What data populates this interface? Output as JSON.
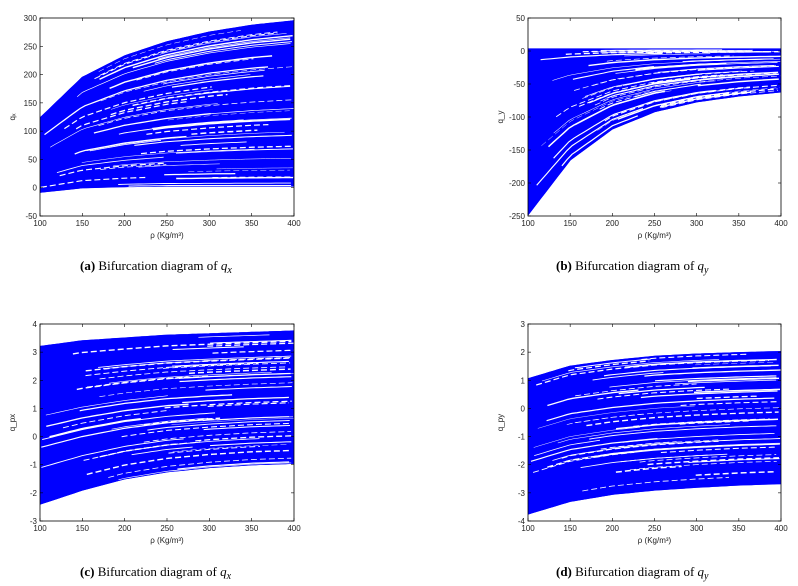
{
  "style": {
    "series_color": "#0000ff",
    "axis_color": "#000000"
  },
  "chart_data": [
    {
      "type": "line",
      "panel": "a",
      "caption": {
        "label": "(a)",
        "text": "Bifurcation diagram of",
        "symbol": "q",
        "subscript": "x"
      },
      "xlabel": "ρ (Kg/m³)",
      "ylabel": "qₓ",
      "xlim": [
        100,
        400
      ],
      "ylim": [
        -50,
        300
      ],
      "xticks": [
        100,
        150,
        200,
        250,
        300,
        350,
        400
      ],
      "yticks": [
        -50,
        0,
        50,
        100,
        150,
        200,
        250,
        300
      ],
      "grid": false,
      "series": [
        {
          "name": "",
          "x": [
            100,
            150,
            200,
            250,
            300,
            350,
            400
          ],
          "y": [
            123,
            195,
            233,
            258,
            275,
            287,
            295
          ]
        },
        {
          "name": "",
          "x": [
            100,
            150,
            200,
            250,
            300,
            350,
            400
          ],
          "y": [
            -8,
            0,
            2,
            3,
            3,
            3,
            3
          ]
        }
      ]
    },
    {
      "type": "line",
      "panel": "b",
      "caption": {
        "label": "(b)",
        "text": "Bifurcation diagram of",
        "symbol": "q",
        "subscript": "y"
      },
      "xlabel": "ρ (Kg/m³)",
      "ylabel": "q_y",
      "xlim": [
        100,
        400
      ],
      "ylim": [
        -250,
        50
      ],
      "xticks": [
        100,
        150,
        200,
        250,
        300,
        350,
        400
      ],
      "yticks": [
        -250,
        -200,
        -150,
        -100,
        -50,
        0,
        50
      ],
      "grid": false,
      "series": [
        {
          "name": "",
          "x": [
            100,
            150,
            200,
            250,
            300,
            350,
            400
          ],
          "y": [
            3,
            3,
            3,
            3,
            3,
            3,
            3
          ]
        },
        {
          "name": "",
          "x": [
            100,
            150,
            200,
            250,
            300,
            350,
            400
          ],
          "y": [
            -248,
            -165,
            -118,
            -92,
            -77,
            -68,
            -62
          ]
        }
      ]
    },
    {
      "type": "line",
      "panel": "c",
      "caption": {
        "label": "(c)",
        "text": "Bifurcation diagram of",
        "symbol": "q",
        "subscript": "x"
      },
      "xlabel": "ρ (Kg/m³)",
      "ylabel": "q_px",
      "xlim": [
        100,
        400
      ],
      "ylim": [
        -3,
        4
      ],
      "xticks": [
        100,
        150,
        200,
        250,
        300,
        350,
        400
      ],
      "yticks": [
        -3,
        -2,
        -1,
        0,
        1,
        2,
        3,
        4
      ],
      "grid": false,
      "series": [
        {
          "name": "",
          "x": [
            100,
            150,
            200,
            250,
            300,
            350,
            400
          ],
          "y": [
            3.2,
            3.4,
            3.5,
            3.6,
            3.65,
            3.7,
            3.75
          ]
        },
        {
          "name": "",
          "x": [
            100,
            150,
            200,
            250,
            300,
            350,
            400
          ],
          "y": [
            -2.4,
            -1.9,
            -1.5,
            -1.25,
            -1.1,
            -1.0,
            -0.95
          ]
        }
      ]
    },
    {
      "type": "line",
      "panel": "d",
      "caption": {
        "label": "(d)",
        "text": "Bifurcation diagram of",
        "symbol": "q",
        "subscript": "y"
      },
      "xlabel": "ρ (Kg/m³)",
      "ylabel": "q_py",
      "xlim": [
        100,
        400
      ],
      "ylim": [
        -4,
        3
      ],
      "xticks": [
        100,
        150,
        200,
        250,
        300,
        350,
        400
      ],
      "yticks": [
        -4,
        -3,
        -2,
        -1,
        0,
        1,
        2,
        3
      ],
      "grid": false,
      "series": [
        {
          "name": "",
          "x": [
            100,
            150,
            200,
            250,
            300,
            350,
            400
          ],
          "y": [
            1.05,
            1.5,
            1.7,
            1.85,
            1.93,
            1.98,
            2.02
          ]
        },
        {
          "name": "",
          "x": [
            100,
            150,
            200,
            250,
            300,
            350,
            400
          ],
          "y": [
            -3.75,
            -3.3,
            -3.05,
            -2.9,
            -2.8,
            -2.72,
            -2.67
          ]
        }
      ]
    }
  ]
}
